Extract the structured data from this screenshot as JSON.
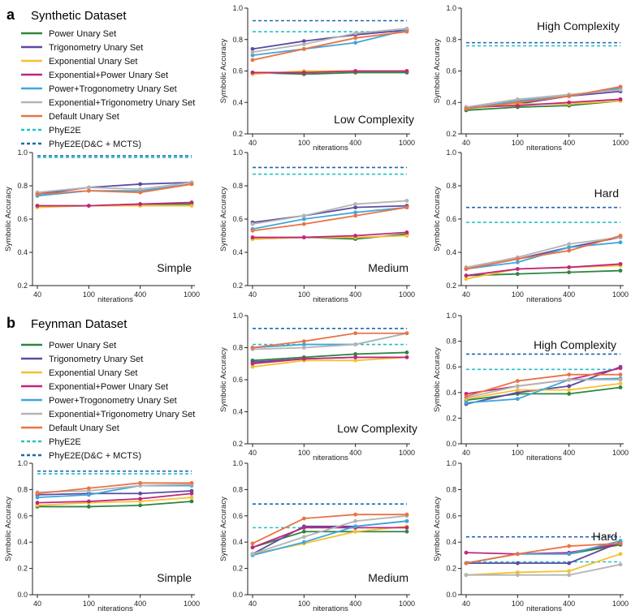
{
  "sections": [
    {
      "letter": "a",
      "title": "Synthetic Dataset"
    },
    {
      "letter": "b",
      "title": "Feynman Dataset"
    }
  ],
  "legend": [
    {
      "name": "Power Unary Set",
      "color": "#2e8540",
      "dashed": false
    },
    {
      "name": "Trigonometry Unary Set",
      "color": "#5b4ba3",
      "dashed": false
    },
    {
      "name": "Exponential Unary Set",
      "color": "#f6c02e",
      "dashed": false
    },
    {
      "name": "Exponential+Power Unary Set",
      "color": "#c0267e",
      "dashed": false
    },
    {
      "name": "Power+Trogonometry Unary Set",
      "color": "#3fa7dc",
      "dashed": false
    },
    {
      "name": "Exponential+Trigonometry Unary Set",
      "color": "#b4b4b4",
      "dashed": false
    },
    {
      "name": "Default Unary Set",
      "color": "#ea7346",
      "dashed": false
    },
    {
      "name": "PhyE2E",
      "color": "#26c0c7",
      "dashed": true
    },
    {
      "name": "PhyE2E(D&C + MCTS)",
      "color": "#2166ac",
      "dashed": true
    }
  ],
  "chart_data": [
    {
      "type": "line",
      "dataset": "Synthetic Dataset",
      "annotation": "Simple",
      "xlabel": "niterations",
      "ylabel": "Symbolic Accuracy",
      "categories": [
        "40",
        "100",
        "400",
        "1000"
      ],
      "ylim": [
        0.2,
        1.0
      ],
      "yticks": [
        "0.2",
        "0.4",
        "0.6",
        "0.8",
        "1.0"
      ],
      "series": [
        {
          "name": "Power Unary Set",
          "values": [
            0.68,
            0.68,
            0.69,
            0.69
          ]
        },
        {
          "name": "Trigonometry Unary Set",
          "values": [
            0.75,
            0.79,
            0.81,
            0.82
          ]
        },
        {
          "name": "Exponential Unary Set",
          "values": [
            0.67,
            0.68,
            0.68,
            0.68
          ]
        },
        {
          "name": "Exponential+Power Unary Set",
          "values": [
            0.68,
            0.68,
            0.69,
            0.7
          ]
        },
        {
          "name": "Power+Trogonometry Unary Set",
          "values": [
            0.74,
            0.77,
            0.77,
            0.81
          ]
        },
        {
          "name": "Exponential+Trigonometry Unary Set",
          "values": [
            0.76,
            0.79,
            0.78,
            0.82
          ]
        },
        {
          "name": "Default Unary Set",
          "values": [
            0.75,
            0.77,
            0.76,
            0.81
          ]
        }
      ],
      "baselines": [
        {
          "name": "PhyE2E",
          "value": 0.97
        },
        {
          "name": "PhyE2E(D&C + MCTS)",
          "value": 0.98
        }
      ]
    },
    {
      "type": "line",
      "dataset": "Synthetic Dataset",
      "annotation": "Low Complexity",
      "xlabel": "niterations",
      "ylabel": "Symbolic Accuracy",
      "categories": [
        "40",
        "100",
        "400",
        "1000"
      ],
      "ylim": [
        0.2,
        1.0
      ],
      "yticks": [
        "0.2",
        "0.4",
        "0.6",
        "0.8",
        "1.0"
      ],
      "series": [
        {
          "name": "Power Unary Set",
          "values": [
            0.59,
            0.58,
            0.59,
            0.59
          ]
        },
        {
          "name": "Trigonometry Unary Set",
          "values": [
            0.74,
            0.79,
            0.83,
            0.86
          ]
        },
        {
          "name": "Exponential Unary Set",
          "values": [
            0.58,
            0.6,
            0.6,
            0.6
          ]
        },
        {
          "name": "Exponential+Power Unary Set",
          "values": [
            0.59,
            0.59,
            0.6,
            0.6
          ]
        },
        {
          "name": "Power+Trogonometry Unary Set",
          "values": [
            0.7,
            0.74,
            0.78,
            0.86
          ]
        },
        {
          "name": "Exponential+Trigonometry Unary Set",
          "values": [
            0.72,
            0.77,
            0.84,
            0.87
          ]
        },
        {
          "name": "Default Unary Set",
          "values": [
            0.67,
            0.74,
            0.81,
            0.85
          ]
        }
      ],
      "baselines": [
        {
          "name": "PhyE2E",
          "value": 0.85
        },
        {
          "name": "PhyE2E(D&C + MCTS)",
          "value": 0.92
        }
      ]
    },
    {
      "type": "line",
      "dataset": "Synthetic Dataset",
      "annotation": "High Complexity",
      "xlabel": "niterations",
      "ylabel": "Symbolic Accuracy",
      "categories": [
        "40",
        "100",
        "400",
        "1000"
      ],
      "ylim": [
        0.2,
        1.0
      ],
      "yticks": [
        "0.2",
        "0.4",
        "0.6",
        "0.8",
        "1.0"
      ],
      "series": [
        {
          "name": "Power Unary Set",
          "values": [
            0.35,
            0.37,
            0.38,
            0.41
          ]
        },
        {
          "name": "Trigonometry Unary Set",
          "values": [
            0.36,
            0.39,
            0.44,
            0.47
          ]
        },
        {
          "name": "Exponential Unary Set",
          "values": [
            0.36,
            0.39,
            0.39,
            0.41
          ]
        },
        {
          "name": "Exponential+Power Unary Set",
          "values": [
            0.37,
            0.38,
            0.4,
            0.42
          ]
        },
        {
          "name": "Power+Trogonometry Unary Set",
          "values": [
            0.36,
            0.41,
            0.44,
            0.49
          ]
        },
        {
          "name": "Exponential+Trigonometry Unary Set",
          "values": [
            0.37,
            0.42,
            0.45,
            0.48
          ]
        },
        {
          "name": "Default Unary Set",
          "values": [
            0.36,
            0.4,
            0.44,
            0.5
          ]
        }
      ],
      "baselines": [
        {
          "name": "PhyE2E",
          "value": 0.76
        },
        {
          "name": "PhyE2E(D&C + MCTS)",
          "value": 0.78
        }
      ]
    },
    {
      "type": "line",
      "dataset": "Synthetic Dataset",
      "annotation": "Medium",
      "xlabel": "niterations",
      "ylabel": "Symbolic Accuracy",
      "categories": [
        "40",
        "100",
        "400",
        "1000"
      ],
      "ylim": [
        0.2,
        1.0
      ],
      "yticks": [
        "0.2",
        "0.4",
        "0.6",
        "0.8",
        "1.0"
      ],
      "series": [
        {
          "name": "Power Unary Set",
          "values": [
            0.48,
            0.49,
            0.48,
            0.51
          ]
        },
        {
          "name": "Trigonometry Unary Set",
          "values": [
            0.58,
            0.62,
            0.67,
            0.68
          ]
        },
        {
          "name": "Exponential Unary Set",
          "values": [
            0.48,
            0.49,
            0.49,
            0.5
          ]
        },
        {
          "name": "Exponential+Power Unary Set",
          "values": [
            0.49,
            0.49,
            0.5,
            0.52
          ]
        },
        {
          "name": "Power+Trogonometry Unary Set",
          "values": [
            0.54,
            0.6,
            0.64,
            0.67
          ]
        },
        {
          "name": "Exponential+Trigonometry Unary Set",
          "values": [
            0.57,
            0.62,
            0.69,
            0.71
          ]
        },
        {
          "name": "Default Unary Set",
          "values": [
            0.53,
            0.57,
            0.62,
            0.67
          ]
        }
      ],
      "baselines": [
        {
          "name": "PhyE2E",
          "value": 0.87
        },
        {
          "name": "PhyE2E(D&C + MCTS)",
          "value": 0.91
        }
      ]
    },
    {
      "type": "line",
      "dataset": "Synthetic Dataset",
      "annotation": "Hard",
      "xlabel": "niterations",
      "ylabel": "Symbolic Accuracy",
      "categories": [
        "40",
        "100",
        "400",
        "1000"
      ],
      "ylim": [
        0.2,
        1.0
      ],
      "yticks": [
        "0.2",
        "0.4",
        "0.6",
        "0.8",
        "1.0"
      ],
      "series": [
        {
          "name": "Power Unary Set",
          "values": [
            0.26,
            0.27,
            0.28,
            0.29
          ]
        },
        {
          "name": "Trigonometry Unary Set",
          "values": [
            0.3,
            0.36,
            0.43,
            0.49
          ]
        },
        {
          "name": "Exponential Unary Set",
          "values": [
            0.24,
            0.3,
            0.31,
            0.32
          ]
        },
        {
          "name": "Exponential+Power Unary Set",
          "values": [
            0.26,
            0.3,
            0.31,
            0.33
          ]
        },
        {
          "name": "Power+Trogonometry Unary Set",
          "values": [
            0.3,
            0.34,
            0.43,
            0.46
          ]
        },
        {
          "name": "Exponential+Trigonometry Unary Set",
          "values": [
            0.31,
            0.37,
            0.45,
            0.49
          ]
        },
        {
          "name": "Default Unary Set",
          "values": [
            0.3,
            0.36,
            0.41,
            0.5
          ]
        }
      ],
      "baselines": [
        {
          "name": "PhyE2E",
          "value": 0.58
        },
        {
          "name": "PhyE2E(D&C + MCTS)",
          "value": 0.67
        }
      ]
    },
    {
      "type": "line",
      "dataset": "Feynman Dataset",
      "annotation": "Simple",
      "xlabel": "niterations",
      "ylabel": "Symbolic Accuracy",
      "categories": [
        "40",
        "100",
        "400",
        "1000"
      ],
      "ylim": [
        0.0,
        1.0
      ],
      "yticks": [
        "0.0",
        "0.2",
        "0.4",
        "0.6",
        "0.8",
        "1.0"
      ],
      "series": [
        {
          "name": "Power Unary Set",
          "values": [
            0.67,
            0.67,
            0.68,
            0.71
          ]
        },
        {
          "name": "Trigonometry Unary Set",
          "values": [
            0.76,
            0.77,
            0.77,
            0.79
          ]
        },
        {
          "name": "Exponential Unary Set",
          "values": [
            0.68,
            0.7,
            0.71,
            0.74
          ]
        },
        {
          "name": "Exponential+Power Unary Set",
          "values": [
            0.7,
            0.71,
            0.73,
            0.77
          ]
        },
        {
          "name": "Power+Trogonometry Unary Set",
          "values": [
            0.74,
            0.76,
            0.83,
            0.83
          ]
        },
        {
          "name": "Exponential+Trigonometry Unary Set",
          "values": [
            0.78,
            0.79,
            0.83,
            0.84
          ]
        },
        {
          "name": "Default Unary Set",
          "values": [
            0.77,
            0.81,
            0.85,
            0.85
          ]
        }
      ],
      "baselines": [
        {
          "name": "PhyE2E",
          "value": 0.92
        },
        {
          "name": "PhyE2E(D&C + MCTS)",
          "value": 0.94
        }
      ]
    },
    {
      "type": "line",
      "dataset": "Feynman Dataset",
      "annotation": "Low Complexity",
      "xlabel": "niterations",
      "ylabel": "Symbolic Accuracy",
      "categories": [
        "40",
        "100",
        "400",
        "1000"
      ],
      "ylim": [
        0.2,
        1.0
      ],
      "yticks": [
        "0.2",
        "0.4",
        "0.6",
        "0.8",
        "1.0"
      ],
      "series": [
        {
          "name": "Power Unary Set",
          "values": [
            0.72,
            0.74,
            0.76,
            0.77
          ]
        },
        {
          "name": "Trigonometry Unary Set",
          "values": [
            0.71,
            0.73,
            0.74,
            0.74
          ]
        },
        {
          "name": "Exponential Unary Set",
          "values": [
            0.68,
            0.72,
            0.72,
            0.74
          ]
        },
        {
          "name": "Exponential+Power Unary Set",
          "values": [
            0.7,
            0.73,
            0.74,
            0.74
          ]
        },
        {
          "name": "Power+Trogonometry Unary Set",
          "values": [
            0.8,
            0.82,
            0.82,
            0.89
          ]
        },
        {
          "name": "Exponential+Trigonometry Unary Set",
          "values": [
            0.79,
            0.8,
            0.82,
            0.89
          ]
        },
        {
          "name": "Default Unary Set",
          "values": [
            0.8,
            0.84,
            0.89,
            0.89
          ]
        }
      ],
      "baselines": [
        {
          "name": "PhyE2E",
          "value": 0.82
        },
        {
          "name": "PhyE2E(D&C + MCTS)",
          "value": 0.92
        }
      ]
    },
    {
      "type": "line",
      "dataset": "Feynman Dataset",
      "annotation": "High Complexity",
      "xlabel": "niterations",
      "ylabel": "Symbolic Accuracy",
      "categories": [
        "40",
        "100",
        "400",
        "1000"
      ],
      "ylim": [
        0.0,
        1.0
      ],
      "yticks": [
        "0.0",
        "0.2",
        "0.4",
        "0.6",
        "0.8",
        "1.0"
      ],
      "series": [
        {
          "name": "Power Unary Set",
          "values": [
            0.34,
            0.39,
            0.39,
            0.44
          ]
        },
        {
          "name": "Trigonometry Unary Set",
          "values": [
            0.31,
            0.4,
            0.45,
            0.6
          ]
        },
        {
          "name": "Exponential Unary Set",
          "values": [
            0.35,
            0.42,
            0.42,
            0.47
          ]
        },
        {
          "name": "Exponential+Power Unary Set",
          "values": [
            0.39,
            0.45,
            0.5,
            0.59
          ]
        },
        {
          "name": "Power+Trogonometry Unary Set",
          "values": [
            0.32,
            0.35,
            0.5,
            0.51
          ]
        },
        {
          "name": "Exponential+Trigonometry Unary Set",
          "values": [
            0.36,
            0.45,
            0.5,
            0.5
          ]
        },
        {
          "name": "Default Unary Set",
          "values": [
            0.37,
            0.49,
            0.54,
            0.54
          ]
        }
      ],
      "baselines": [
        {
          "name": "PhyE2E",
          "value": 0.58
        },
        {
          "name": "PhyE2E(D&C + MCTS)",
          "value": 0.7
        }
      ]
    },
    {
      "type": "line",
      "dataset": "Feynman Dataset",
      "annotation": "Medium",
      "xlabel": "niterations",
      "ylabel": "Symbolic Accuracy",
      "categories": [
        "40",
        "100",
        "400",
        "1000"
      ],
      "ylim": [
        0.0,
        1.0
      ],
      "yticks": [
        "0.0",
        "0.2",
        "0.4",
        "0.6",
        "0.8",
        "1.0"
      ],
      "series": [
        {
          "name": "Power Unary Set",
          "values": [
            0.36,
            0.48,
            0.48,
            0.48
          ]
        },
        {
          "name": "Trigonometry Unary Set",
          "values": [
            0.31,
            0.52,
            0.52,
            0.56
          ]
        },
        {
          "name": "Exponential Unary Set",
          "values": [
            0.31,
            0.39,
            0.48,
            0.52
          ]
        },
        {
          "name": "Exponential+Power Unary Set",
          "values": [
            0.36,
            0.51,
            0.51,
            0.51
          ]
        },
        {
          "name": "Power+Trogonometry Unary Set",
          "values": [
            0.3,
            0.4,
            0.52,
            0.56
          ]
        },
        {
          "name": "Exponential+Trigonometry Unary Set",
          "values": [
            0.31,
            0.44,
            0.56,
            0.6
          ]
        },
        {
          "name": "Default Unary Set",
          "values": [
            0.39,
            0.58,
            0.61,
            0.61
          ]
        }
      ],
      "baselines": [
        {
          "name": "PhyE2E",
          "value": 0.51
        },
        {
          "name": "PhyE2E(D&C + MCTS)",
          "value": 0.69
        }
      ]
    },
    {
      "type": "line",
      "dataset": "Feynman Dataset",
      "annotation": "Hard",
      "xlabel": "niterations",
      "ylabel": "Symbolic Accuracy",
      "categories": [
        "40",
        "100",
        "400",
        "1000"
      ],
      "ylim": [
        0.0,
        1.0
      ],
      "yticks": [
        "0.0",
        "0.2",
        "0.4",
        "0.6",
        "0.8",
        "1.0"
      ],
      "series": [
        {
          "name": "Power Unary Set",
          "values": [
            0.24,
            0.31,
            0.31,
            0.38
          ]
        },
        {
          "name": "Trigonometry Unary Set",
          "values": [
            0.24,
            0.24,
            0.24,
            0.4
          ]
        },
        {
          "name": "Exponential Unary Set",
          "values": [
            0.15,
            0.17,
            0.18,
            0.31
          ]
        },
        {
          "name": "Exponential+Power Unary Set",
          "values": [
            0.32,
            0.31,
            0.32,
            0.39
          ]
        },
        {
          "name": "Power+Trogonometry Unary Set",
          "values": [
            0.24,
            0.31,
            0.31,
            0.41
          ]
        },
        {
          "name": "Exponential+Trigonometry Unary Set",
          "values": [
            0.15,
            0.15,
            0.15,
            0.23
          ]
        },
        {
          "name": "Default Unary Set",
          "values": [
            0.24,
            0.31,
            0.37,
            0.39
          ]
        }
      ],
      "baselines": [
        {
          "name": "PhyE2E",
          "value": 0.25
        },
        {
          "name": "PhyE2E(D&C + MCTS)",
          "value": 0.44
        }
      ]
    }
  ]
}
